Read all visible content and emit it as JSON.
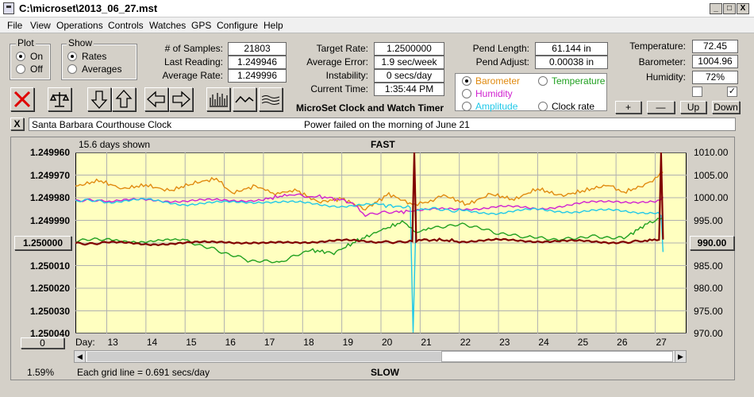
{
  "window": {
    "title": "C:\\microset\\2013_06_27.mst",
    "min": "_",
    "max": "□",
    "close": "X"
  },
  "menu": [
    "File",
    "View",
    "Operations",
    "Controls",
    "Watches",
    "GPS",
    "Configure",
    "Help"
  ],
  "plot_group": {
    "label": "Plot",
    "options": [
      "On",
      "Off"
    ],
    "selected": "On"
  },
  "show_group": {
    "label": "Show",
    "options": [
      "Rates",
      "Averages"
    ],
    "selected": "Rates"
  },
  "stats": [
    {
      "label": "# of Samples:",
      "value": "21803"
    },
    {
      "label": "Last Reading:",
      "value": "1.249946"
    },
    {
      "label": "Average Rate:",
      "value": "1.249996"
    }
  ],
  "rates": [
    {
      "label": "Target Rate:",
      "value": "1.2500000"
    },
    {
      "label": "Average Error:",
      "value": "1.9 sec/week"
    },
    {
      "label": "Instability:",
      "value": "0 secs/day"
    },
    {
      "label": "Current Time:",
      "value": "1:35:44 PM"
    }
  ],
  "pend": [
    {
      "label": "Pend Length:",
      "value": "61.144 in"
    },
    {
      "label": "Pend Adjust:",
      "value": "0.00038 in"
    }
  ],
  "env": [
    {
      "label": "Temperature:",
      "value": "72.45"
    },
    {
      "label": "Barometer:",
      "value": "1004.96"
    },
    {
      "label": "Humidity:",
      "value": "72%"
    }
  ],
  "series_select": {
    "options": [
      {
        "label": "Barometer",
        "color": "#e08a10",
        "selected": true
      },
      {
        "label": "Temperature",
        "color": "#20a020",
        "selected": false
      },
      {
        "label": "Humidity",
        "color": "#d020d0",
        "selected": false
      },
      {
        "label": "Clock rate",
        "color": "#000000",
        "selected": false
      },
      {
        "label": "Amplitude",
        "color": "#20c8e8",
        "selected": false
      }
    ]
  },
  "app_caption": "MicroSet Clock and Watch Timer",
  "adjust_buttons": {
    "plus": "+",
    "minus": "—",
    "up": "Up",
    "down": "Down"
  },
  "checkbox_right": "✓",
  "info_bar": {
    "close": "X",
    "clock_name": "Santa Barbara Courthouse Clock",
    "note": "Power failed on the morning of June 21"
  },
  "graph": {
    "days_shown": "15.6 days shown",
    "top_label": "FAST",
    "bottom_label": "SLOW",
    "grid_note": "Each grid line = 0.691 secs/day",
    "percent": "1.59%",
    "left_axis_button": "1.250000",
    "right_axis_button": "990.00",
    "zero_button": "0",
    "day_prefix": "Day:"
  },
  "chart_data": {
    "type": "line",
    "left_axis": {
      "ticks": [
        "1.249960",
        "1.249970",
        "1.249980",
        "1.249990",
        "1.250000",
        "1.250010",
        "1.250020",
        "1.250030",
        "1.250040"
      ],
      "ylim": [
        1.24996,
        1.25004
      ],
      "reversed": true
    },
    "right_axis": {
      "ticks": [
        "1010.00",
        "1005.00",
        "1000.00",
        "995.00",
        "990.00",
        "985.00",
        "980.00",
        "975.00",
        "970.00"
      ],
      "ylim": [
        970,
        1010
      ]
    },
    "x_ticks": [
      "13",
      "14",
      "15",
      "16",
      "17",
      "18",
      "19",
      "20",
      "21",
      "22",
      "23",
      "24",
      "25",
      "26",
      "27"
    ],
    "x_range": [
      12.2,
      27.8
    ],
    "grid": true,
    "series": [
      {
        "name": "Barometer",
        "color": "#e08a10",
        "x": [
          12.2,
          12.8,
          13.4,
          14.0,
          14.6,
          15.2,
          15.8,
          16.2,
          16.8,
          17.3,
          17.8,
          18.4,
          19.0,
          19.6,
          20.2,
          20.8,
          21.2,
          21.6,
          22.2,
          22.8,
          23.4,
          24.0,
          24.6,
          25.2,
          25.8,
          26.2,
          26.8,
          27.2
        ],
        "y": [
          1002.5,
          1003.8,
          1002.0,
          1002.8,
          1001.5,
          1003.2,
          1004.2,
          1001.0,
          1002.6,
          1000.5,
          1001.8,
          999.0,
          999.8,
          997.5,
          1000.8,
          998.5,
          999.0,
          1000.6,
          998.5,
          1000.8,
          999.6,
          1002.0,
          1000.4,
          1001.6,
          1002.8,
          1001.2,
          1003.0,
          1005.6
        ]
      },
      {
        "name": "Humidity",
        "color": "#d020d0",
        "x": [
          12.2,
          13.0,
          14.0,
          15.0,
          16.0,
          17.0,
          17.6,
          18.5,
          19.2,
          19.6,
          20.4,
          21.0,
          22.0,
          23.0,
          24.0,
          25.0,
          26.0,
          27.0,
          27.2
        ],
        "y": [
          999.4,
          999.2,
          999.5,
          999.3,
          999.4,
          999.6,
          1000.6,
          1000.2,
          999.2,
          996.3,
          996.8,
          997.2,
          997.5,
          998.0,
          997.6,
          998.6,
          999.3,
          999.0,
          1000.2
        ]
      },
      {
        "name": "Amplitude",
        "color": "#20c8e8",
        "x": [
          12.2,
          13.0,
          14.0,
          15.0,
          16.0,
          17.0,
          18.0,
          19.0,
          20.0,
          20.75,
          20.82,
          20.9,
          21.2,
          22.0,
          23.0,
          24.0,
          25.0,
          26.0,
          27.0,
          27.15,
          27.2
        ],
        "y": [
          999.4,
          999.1,
          999.5,
          998.6,
          998.9,
          999.2,
          998.8,
          998.2,
          998.4,
          997.8,
          970.2,
          997.0,
          997.5,
          997.2,
          996.6,
          997.4,
          996.9,
          997.2,
          996.7,
          996.0,
          988.0
        ]
      },
      {
        "name": "Temperature",
        "color": "#20a020",
        "x": [
          12.2,
          13.0,
          14.0,
          15.0,
          15.8,
          16.6,
          17.4,
          18.2,
          18.8,
          19.4,
          20.0,
          20.6,
          20.9,
          21.4,
          22.2,
          23.0,
          23.8,
          24.6,
          25.4,
          26.2,
          26.8,
          27.2
        ],
        "y": [
          990.5,
          990.8,
          990.3,
          990.6,
          988.5,
          986.2,
          985.6,
          988.4,
          987.8,
          990.5,
          992.8,
          994.8,
          992.0,
          993.6,
          994.0,
          992.0,
          991.2,
          990.8,
          991.6,
          991.0,
          994.3,
          995.6
        ]
      },
      {
        "name": "Clock rate",
        "color": "#800000",
        "x": [
          12.2,
          13.0,
          14.0,
          15.0,
          16.0,
          17.0,
          18.0,
          19.0,
          20.0,
          20.8,
          20.85,
          20.9,
          21.3,
          22.0,
          23.0,
          24.0,
          25.0,
          26.0,
          26.8,
          27.1,
          27.15,
          27.2
        ],
        "y": [
          1.2500003,
          1.2499999,
          1.2500004,
          1.2500002,
          1.2499993,
          1.2500003,
          1.2499995,
          1.249999,
          1.2499995,
          1.2499993,
          1.24996,
          1.2499988,
          1.2499985,
          1.2499992,
          1.2499988,
          1.2499991,
          1.2499993,
          1.2499996,
          1.2499992,
          1.2499986,
          1.24996,
          1.2499985
        ]
      }
    ]
  }
}
